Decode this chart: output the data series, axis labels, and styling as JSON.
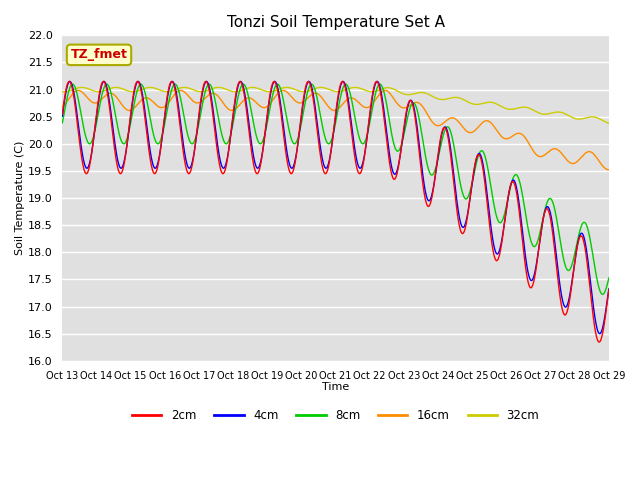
{
  "title": "Tonzi Soil Temperature Set A",
  "xlabel": "Time",
  "ylabel": "Soil Temperature (C)",
  "ylim": [
    16.0,
    22.0
  ],
  "yticks": [
    16.0,
    16.5,
    17.0,
    17.5,
    18.0,
    18.5,
    19.0,
    19.5,
    20.0,
    20.5,
    21.0,
    21.5,
    22.0
  ],
  "colors": {
    "2cm": "#FF0000",
    "4cm": "#0000FF",
    "8cm": "#00CC00",
    "16cm": "#FF8C00",
    "32cm": "#CCCC00"
  },
  "annotation_text": "TZ_fmet",
  "annotation_color": "#CC0000",
  "annotation_bg": "#FFFFCC",
  "bg_color": "#E0E0E0",
  "grid_color": "#FFFFFF",
  "num_points": 1600
}
